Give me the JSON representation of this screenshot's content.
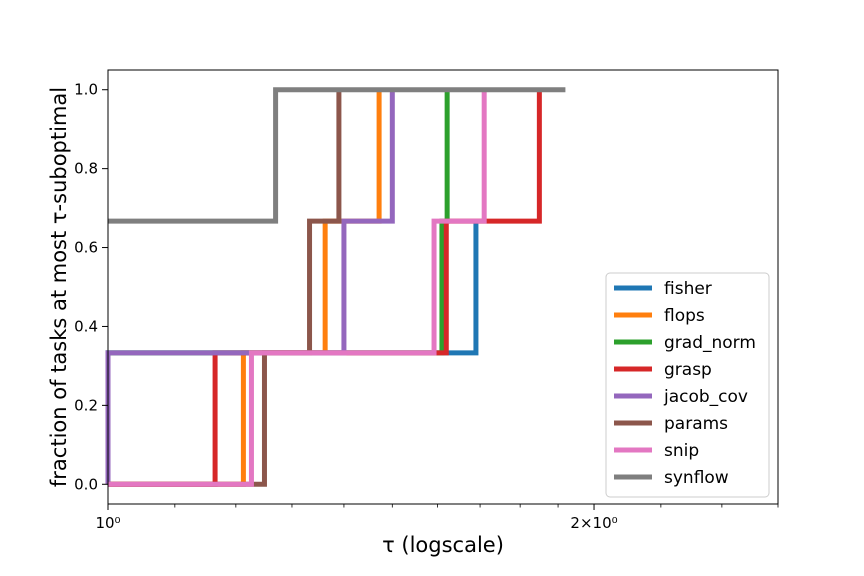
{
  "chart_data": {
    "type": "line",
    "step": true,
    "x_scale": "log",
    "xlim": [
      1.0,
      2.6
    ],
    "ylim": [
      -0.05,
      1.05
    ],
    "xlabel": "τ (logscale)",
    "ylabel": "fraction of tasks at most τ-suboptimal",
    "x_ticks": [
      {
        "value": 1.0,
        "label": "10⁰"
      },
      {
        "value": 2.0,
        "label": "2×10⁰"
      }
    ],
    "y_ticks": [
      {
        "value": 0.0,
        "label": "0.0"
      },
      {
        "value": 0.2,
        "label": "0.2"
      },
      {
        "value": 0.4,
        "label": "0.4"
      },
      {
        "value": 0.6,
        "label": "0.6"
      },
      {
        "value": 0.8,
        "label": "0.8"
      },
      {
        "value": 1.0,
        "label": "1.0"
      }
    ],
    "grid": false,
    "legend_position": "lower right",
    "series": [
      {
        "name": "fisher",
        "color": "#1f77b4",
        "x": [
          1.0,
          1.0,
          1.69,
          1.69
        ],
        "y": [
          0.0,
          0.333,
          0.333,
          0.667
        ]
      },
      {
        "name": "flops",
        "color": "#ff7f0e",
        "x": [
          1.0,
          1.213,
          1.363,
          1.472,
          1.472
        ],
        "y": [
          0.0,
          0.333,
          0.667,
          1.0,
          1.0
        ]
      },
      {
        "name": "grad_norm",
        "color": "#2ca02c",
        "x": [
          1.0,
          1.0,
          1.61,
          1.622,
          1.622
        ],
        "y": [
          0.0,
          0.333,
          0.667,
          1.0,
          1.0
        ]
      },
      {
        "name": "grasp",
        "color": "#d62728",
        "x": [
          1.0,
          1.165,
          1.62,
          1.85,
          1.85
        ],
        "y": [
          0.0,
          0.333,
          0.667,
          1.0,
          1.0
        ]
      },
      {
        "name": "jacob_cov",
        "color": "#9467bd",
        "x": [
          1.0,
          1.0,
          1.4,
          1.5,
          1.5
        ],
        "y": [
          0.0,
          0.333,
          0.667,
          1.0,
          1.0
        ]
      },
      {
        "name": "params",
        "color": "#8c564b",
        "x": [
          1.0,
          1.25,
          1.333,
          1.39,
          1.39
        ],
        "y": [
          0.0,
          0.333,
          0.667,
          1.0,
          1.0
        ]
      },
      {
        "name": "snip",
        "color": "#e377c2",
        "x": [
          1.0,
          1.227,
          1.592,
          1.71,
          1.71
        ],
        "y": [
          0.0,
          0.333,
          0.667,
          1.0,
          1.0
        ]
      },
      {
        "name": "synflow",
        "color": "#7f7f7f",
        "x": [
          1.0,
          1.27,
          1.92
        ],
        "y": [
          0.667,
          1.0,
          1.0
        ]
      }
    ]
  }
}
